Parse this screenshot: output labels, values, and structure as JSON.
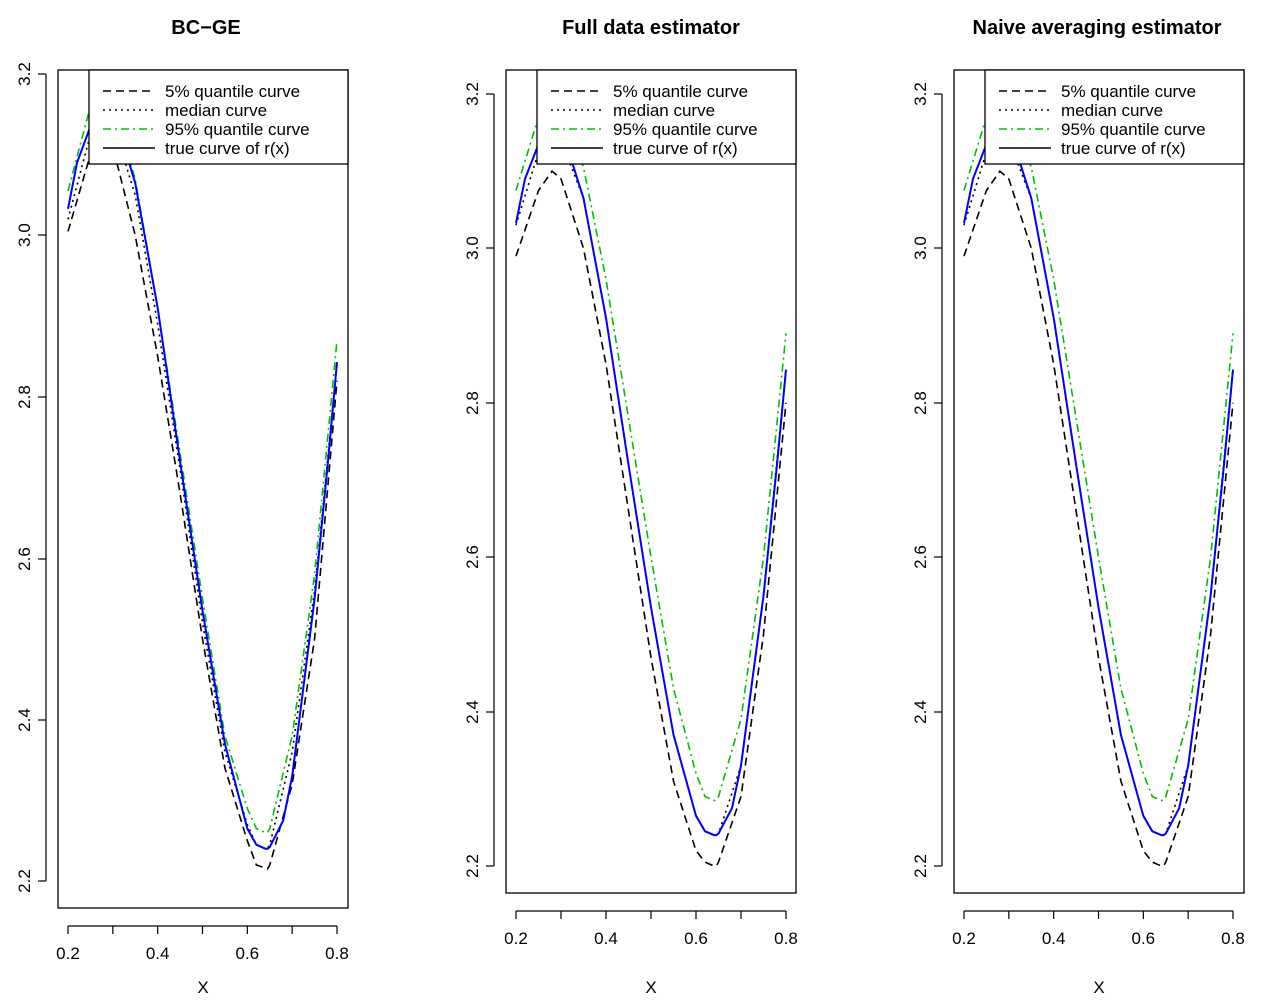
{
  "figure": {
    "legend_labels": [
      "5% quantile curve",
      "median curve",
      "95% quantile curve",
      "true curve of r(x)"
    ],
    "line_colors": {
      "q05": "#000000",
      "median": "#000000",
      "q95": "#00bf00",
      "true": "#0000ff",
      "legend_true": "#000000"
    }
  },
  "chart_data": [
    {
      "type": "line",
      "title": "BC−GE",
      "xlabel": "X",
      "ylabel": "",
      "xlim": [
        0.2,
        0.8
      ],
      "ylim": [
        2.2,
        3.2
      ],
      "xticks": [
        "0.2",
        "0.4",
        "0.6",
        "0.8"
      ],
      "yticks": [
        "2.2",
        "2.4",
        "2.6",
        "2.8",
        "3.0",
        "3.2"
      ],
      "legend_position": "top-right",
      "grid": false,
      "series": [
        {
          "name": "5% quantile curve",
          "x": [
            0.2,
            0.25,
            0.28,
            0.3,
            0.35,
            0.4,
            0.45,
            0.5,
            0.55,
            0.6,
            0.62,
            0.64,
            0.645,
            0.65,
            0.7,
            0.75,
            0.8
          ],
          "y": [
            3.005,
            3.1,
            3.12,
            3.11,
            3.0,
            2.85,
            2.68,
            2.5,
            2.34,
            2.25,
            2.22,
            2.216,
            2.215,
            2.22,
            2.32,
            2.5,
            2.82
          ]
        },
        {
          "name": "median curve",
          "x": [
            0.2,
            0.25,
            0.28,
            0.3,
            0.35,
            0.4,
            0.45,
            0.5,
            0.55,
            0.6,
            0.62,
            0.64,
            0.645,
            0.65,
            0.7,
            0.75,
            0.8
          ],
          "y": [
            3.02,
            3.125,
            3.145,
            3.14,
            3.05,
            2.89,
            2.71,
            2.52,
            2.36,
            2.27,
            2.245,
            2.24,
            2.24,
            2.245,
            2.36,
            2.56,
            2.84
          ]
        },
        {
          "name": "95% quantile curve",
          "x": [
            0.2,
            0.25,
            0.28,
            0.3,
            0.35,
            0.4,
            0.45,
            0.5,
            0.55,
            0.6,
            0.62,
            0.64,
            0.645,
            0.65,
            0.7,
            0.75,
            0.8
          ],
          "y": [
            3.055,
            3.16,
            3.168,
            3.16,
            3.07,
            2.91,
            2.73,
            2.55,
            2.38,
            2.29,
            2.265,
            2.26,
            2.26,
            2.265,
            2.38,
            2.58,
            2.87
          ]
        },
        {
          "name": "true curve of r(x)",
          "x": [
            0.2,
            0.22,
            0.25,
            0.28,
            0.3,
            0.32,
            0.35,
            0.4,
            0.45,
            0.5,
            0.55,
            0.6,
            0.62,
            0.64,
            0.645,
            0.65,
            0.68,
            0.7,
            0.75,
            0.78,
            0.8
          ],
          "y": [
            3.033,
            3.09,
            3.135,
            3.145,
            3.14,
            3.12,
            3.065,
            2.91,
            2.72,
            2.535,
            2.37,
            2.265,
            2.245,
            2.24,
            2.24,
            2.242,
            2.275,
            2.33,
            2.55,
            2.72,
            2.843
          ]
        }
      ]
    },
    {
      "type": "line",
      "title": "Full data estimator",
      "xlabel": "X",
      "ylabel": "",
      "xlim": [
        0.2,
        0.8
      ],
      "ylim": [
        2.2,
        3.2
      ],
      "xticks": [
        "0.2",
        "0.4",
        "0.6",
        "0.8"
      ],
      "yticks": [
        "2.2",
        "2.4",
        "2.6",
        "2.8",
        "3.0",
        "3.2"
      ],
      "legend_position": "top-right",
      "grid": false,
      "series": [
        {
          "name": "5% quantile curve",
          "x": [
            0.2,
            0.25,
            0.28,
            0.3,
            0.35,
            0.4,
            0.45,
            0.5,
            0.55,
            0.6,
            0.62,
            0.64,
            0.645,
            0.65,
            0.7,
            0.75,
            0.8
          ],
          "y": [
            2.99,
            3.075,
            3.1,
            3.09,
            3.0,
            2.85,
            2.66,
            2.47,
            2.31,
            2.22,
            2.205,
            2.2,
            2.2,
            2.205,
            2.29,
            2.5,
            2.8
          ]
        },
        {
          "name": "median curve",
          "x": [
            0.2,
            0.25,
            0.28,
            0.3,
            0.35,
            0.4,
            0.45,
            0.5,
            0.55,
            0.6,
            0.62,
            0.64,
            0.645,
            0.65,
            0.7,
            0.75,
            0.8
          ],
          "y": [
            3.03,
            3.125,
            3.145,
            3.14,
            3.065,
            2.91,
            2.72,
            2.535,
            2.37,
            2.265,
            2.245,
            2.24,
            2.24,
            2.242,
            2.33,
            2.55,
            2.843
          ]
        },
        {
          "name": "95% quantile curve",
          "x": [
            0.2,
            0.25,
            0.28,
            0.3,
            0.35,
            0.4,
            0.45,
            0.5,
            0.55,
            0.6,
            0.62,
            0.64,
            0.645,
            0.65,
            0.7,
            0.75,
            0.8
          ],
          "y": [
            3.075,
            3.17,
            3.19,
            3.18,
            3.105,
            2.96,
            2.78,
            2.6,
            2.43,
            2.32,
            2.29,
            2.285,
            2.285,
            2.29,
            2.39,
            2.6,
            2.89
          ]
        },
        {
          "name": "true curve of r(x)",
          "x": [
            0.2,
            0.22,
            0.25,
            0.28,
            0.3,
            0.32,
            0.35,
            0.4,
            0.45,
            0.5,
            0.55,
            0.6,
            0.62,
            0.64,
            0.645,
            0.65,
            0.68,
            0.7,
            0.75,
            0.78,
            0.8
          ],
          "y": [
            3.033,
            3.09,
            3.135,
            3.145,
            3.14,
            3.12,
            3.065,
            2.91,
            2.72,
            2.535,
            2.37,
            2.265,
            2.245,
            2.24,
            2.24,
            2.242,
            2.275,
            2.33,
            2.55,
            2.72,
            2.843
          ]
        }
      ]
    },
    {
      "type": "line",
      "title": "Naive averaging estimator",
      "xlabel": "X",
      "ylabel": "",
      "xlim": [
        0.2,
        0.8
      ],
      "ylim": [
        2.2,
        3.2
      ],
      "xticks": [
        "0.2",
        "0.4",
        "0.6",
        "0.8"
      ],
      "yticks": [
        "2.2",
        "2.4",
        "2.6",
        "2.8",
        "3.0",
        "3.2"
      ],
      "legend_position": "top-right",
      "grid": false,
      "series": [
        {
          "name": "5% quantile curve",
          "x": [
            0.2,
            0.25,
            0.28,
            0.3,
            0.35,
            0.4,
            0.45,
            0.5,
            0.55,
            0.6,
            0.62,
            0.64,
            0.645,
            0.65,
            0.7,
            0.75,
            0.8
          ],
          "y": [
            2.99,
            3.075,
            3.1,
            3.09,
            3.0,
            2.85,
            2.66,
            2.47,
            2.31,
            2.22,
            2.205,
            2.2,
            2.2,
            2.205,
            2.29,
            2.5,
            2.8
          ]
        },
        {
          "name": "median curve",
          "x": [
            0.2,
            0.25,
            0.28,
            0.3,
            0.35,
            0.4,
            0.45,
            0.5,
            0.55,
            0.6,
            0.62,
            0.64,
            0.645,
            0.65,
            0.7,
            0.75,
            0.8
          ],
          "y": [
            3.03,
            3.125,
            3.145,
            3.14,
            3.065,
            2.91,
            2.72,
            2.535,
            2.37,
            2.265,
            2.245,
            2.24,
            2.24,
            2.242,
            2.33,
            2.55,
            2.843
          ]
        },
        {
          "name": "95% quantile curve",
          "x": [
            0.2,
            0.25,
            0.28,
            0.3,
            0.35,
            0.4,
            0.45,
            0.5,
            0.55,
            0.6,
            0.62,
            0.64,
            0.645,
            0.65,
            0.7,
            0.75,
            0.8
          ],
          "y": [
            3.075,
            3.17,
            3.19,
            3.18,
            3.105,
            2.96,
            2.78,
            2.6,
            2.43,
            2.32,
            2.29,
            2.285,
            2.285,
            2.29,
            2.39,
            2.6,
            2.89
          ]
        },
        {
          "name": "true curve of r(x)",
          "x": [
            0.2,
            0.22,
            0.25,
            0.28,
            0.3,
            0.32,
            0.35,
            0.4,
            0.45,
            0.5,
            0.55,
            0.6,
            0.62,
            0.64,
            0.645,
            0.65,
            0.68,
            0.7,
            0.75,
            0.78,
            0.8
          ],
          "y": [
            3.033,
            3.09,
            3.135,
            3.145,
            3.14,
            3.12,
            3.065,
            2.91,
            2.72,
            2.535,
            2.37,
            2.265,
            2.245,
            2.24,
            2.24,
            2.242,
            2.275,
            2.33,
            2.55,
            2.72,
            2.843
          ]
        }
      ]
    }
  ]
}
